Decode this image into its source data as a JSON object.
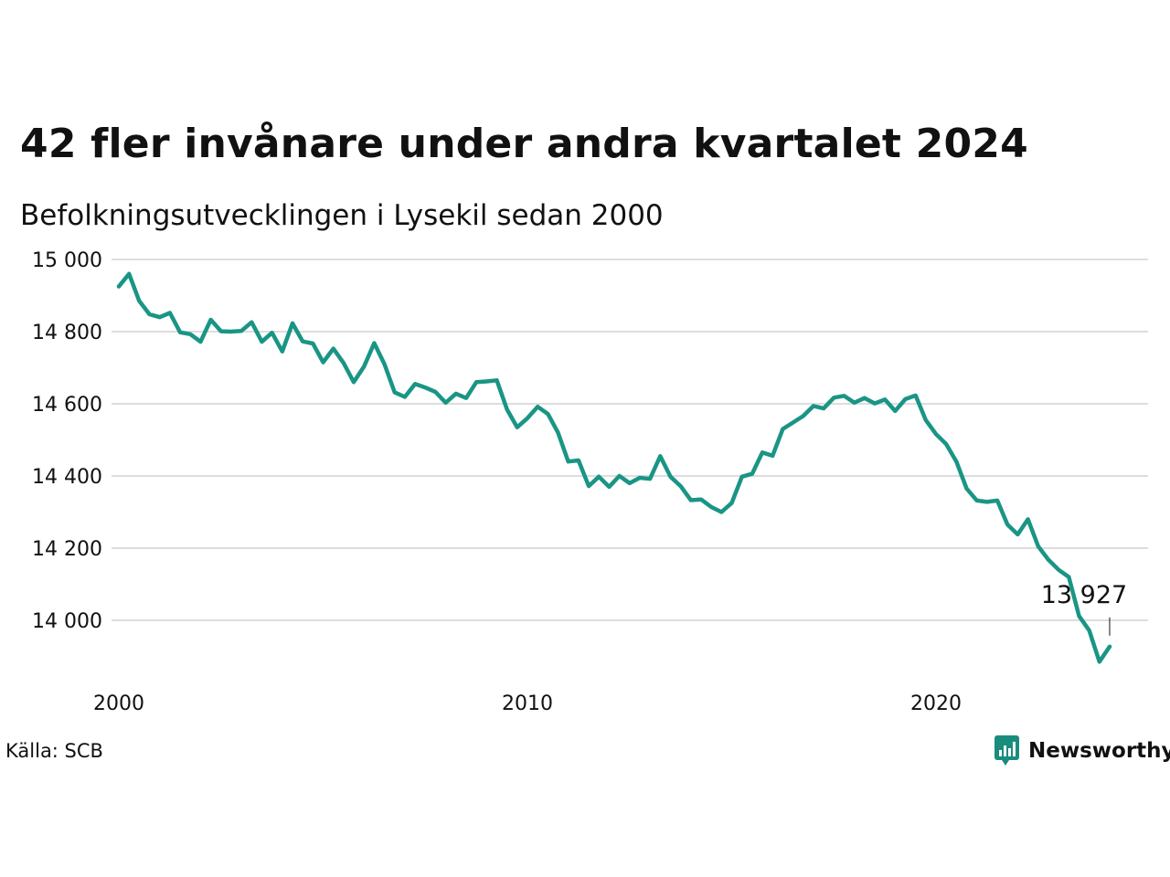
{
  "title": "42 fler invånare under andra kvartalet 2024",
  "subtitle": "Befolkningsutvecklingen i Lysekil sedan 2000",
  "source": "Källa: SCB",
  "brand": {
    "name": "Newsworthy",
    "icon": "newsworthy-logo-icon",
    "color": "#1a8c7e"
  },
  "colors": {
    "line": "#1a9585",
    "grid": "#dddddd",
    "text": "#111111"
  },
  "chart_data": {
    "type": "line",
    "x_axis": {
      "range": [
        2000,
        2025.5
      ],
      "ticks": [
        2000,
        2010,
        2020
      ],
      "tick_labels": [
        "2000",
        "2010",
        "2020"
      ]
    },
    "y_axis": {
      "range": [
        13900,
        15000
      ],
      "ticks": [
        14000,
        14200,
        14400,
        14600,
        14800,
        15000
      ],
      "tick_labels": [
        "14 000",
        "14 200",
        "14 400",
        "14 600",
        "14 800",
        "15 000"
      ]
    },
    "grid": true,
    "x_start": 2000.0,
    "x_step": 0.25,
    "values": [
      14925,
      14960,
      14885,
      14848,
      14840,
      14852,
      14798,
      14793,
      14772,
      14833,
      14801,
      14800,
      14802,
      14826,
      14772,
      14797,
      14745,
      14823,
      14773,
      14767,
      14715,
      14753,
      14713,
      14660,
      14703,
      14768,
      14710,
      14632,
      14619,
      14655,
      14645,
      14633,
      14603,
      14628,
      14616,
      14660,
      14662,
      14665,
      14584,
      14535,
      14560,
      14592,
      14572,
      14520,
      14440,
      14443,
      14372,
      14398,
      14370,
      14400,
      14380,
      14395,
      14392,
      14455,
      14398,
      14372,
      14333,
      14335,
      14314,
      14300,
      14325,
      14398,
      14406,
      14465,
      14456,
      14530,
      14548,
      14566,
      14594,
      14587,
      14617,
      14622,
      14603,
      14616,
      14601,
      14612,
      14580,
      14613,
      14623,
      14555,
      14516,
      14488,
      14440,
      14365,
      14332,
      14328,
      14332,
      14265,
      14238,
      14280,
      14205,
      14168,
      14140,
      14120,
      14012,
      13972,
      13885,
      13927
    ],
    "annotation": {
      "label": "13 927",
      "x": 2024.25,
      "y": 13927
    }
  }
}
